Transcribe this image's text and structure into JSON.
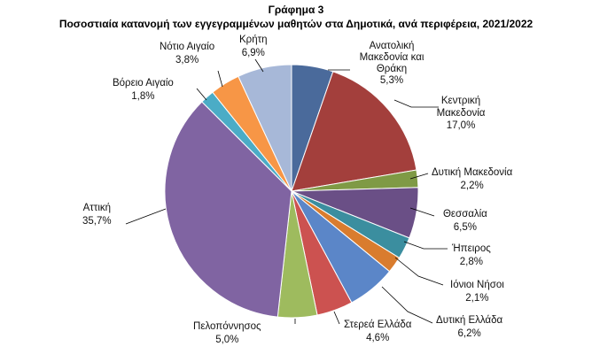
{
  "chart_data": {
    "type": "pie",
    "title": "Γράφημα 3",
    "subtitle": "Ποσοστιαία κατανομή των εγγεγραμμένων μαθητών στα Δημοτικά, ανά περιφέρεια, 2021/2022",
    "legend": "none",
    "slices": [
      {
        "label": [
          "Ανατολική",
          "Μακεδονία και",
          "Θράκη"
        ],
        "value_label": "5,3%",
        "value": 5.3,
        "color": "#4a6a9b"
      },
      {
        "label": [
          "Κεντρική",
          "Μακεδονία"
        ],
        "value_label": "17,0%",
        "value": 17.0,
        "color": "#a33f3c"
      },
      {
        "label": [
          "Δυτική Μακεδονία"
        ],
        "value_label": "2,2%",
        "value": 2.2,
        "color": "#7f9a45"
      },
      {
        "label": [
          "Θεσσαλία"
        ],
        "value_label": "6,5%",
        "value": 6.5,
        "color": "#6a4f86"
      },
      {
        "label": [
          "Ήπειρος"
        ],
        "value_label": "2,8%",
        "value": 2.8,
        "color": "#3b8e9f"
      },
      {
        "label": [
          "Ιόνιοι Νήσοι"
        ],
        "value_label": "2,1%",
        "value": 2.1,
        "color": "#d97c2e"
      },
      {
        "label": [
          "Δυτική Ελλάδα"
        ],
        "value_label": "6,2%",
        "value": 6.2,
        "color": "#5b86c8"
      },
      {
        "label": [
          "Στερεά Ελλάδα"
        ],
        "value_label": "4,6%",
        "value": 4.6,
        "color": "#cc5250"
      },
      {
        "label": [
          "Πελοπόννησος"
        ],
        "value_label": "5,0%",
        "value": 5.0,
        "color": "#9ebb5e"
      },
      {
        "label": [
          "Αττική"
        ],
        "value_label": "35,7%",
        "value": 35.7,
        "color": "#8064a2"
      },
      {
        "label": [
          "Βόρειο Αιγαίο"
        ],
        "value_label": "1,8%",
        "value": 1.8,
        "color": "#4bacc6"
      },
      {
        "label": [
          "Νότιο Αιγαίο"
        ],
        "value_label": "3,8%",
        "value": 3.8,
        "color": "#f79646"
      },
      {
        "label": [
          "Κρήτη"
        ],
        "value_label": "6,9%",
        "value": 6.9,
        "color": "#a7b8d8"
      }
    ]
  }
}
